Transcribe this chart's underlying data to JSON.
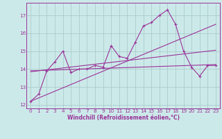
{
  "bg_color": "#cce9e9",
  "line_color": "#993399",
  "grid_color": "#aacccc",
  "xlabel": "Windchill (Refroidissement éolien,°C)",
  "xlim": [
    -0.5,
    23.5
  ],
  "ylim": [
    11.8,
    17.7
  ],
  "yticks": [
    12,
    13,
    14,
    15,
    16,
    17
  ],
  "xticks": [
    0,
    1,
    2,
    3,
    4,
    5,
    6,
    7,
    8,
    9,
    10,
    11,
    12,
    13,
    14,
    15,
    16,
    17,
    18,
    19,
    20,
    21,
    22,
    23
  ],
  "series1_x": [
    0,
    1,
    2,
    3,
    4,
    5,
    6,
    7,
    8,
    9,
    10,
    11,
    12,
    13,
    14,
    15,
    16,
    17,
    18,
    19,
    20,
    21,
    22,
    23
  ],
  "series1_y": [
    12.2,
    12.6,
    13.9,
    14.4,
    15.0,
    13.8,
    14.0,
    14.0,
    14.2,
    14.1,
    15.3,
    14.7,
    14.6,
    15.5,
    16.4,
    16.6,
    17.0,
    17.3,
    16.5,
    15.0,
    14.1,
    13.6,
    14.2,
    14.2
  ],
  "series2_x": [
    0,
    23
  ],
  "series2_y": [
    12.2,
    16.5
  ],
  "series3_x": [
    0,
    23
  ],
  "series3_y": [
    13.9,
    14.25
  ],
  "series4_x": [
    0,
    23
  ],
  "series4_y": [
    13.85,
    15.05
  ],
  "tick_fontsize": 5.2,
  "xlabel_fontsize": 5.5
}
